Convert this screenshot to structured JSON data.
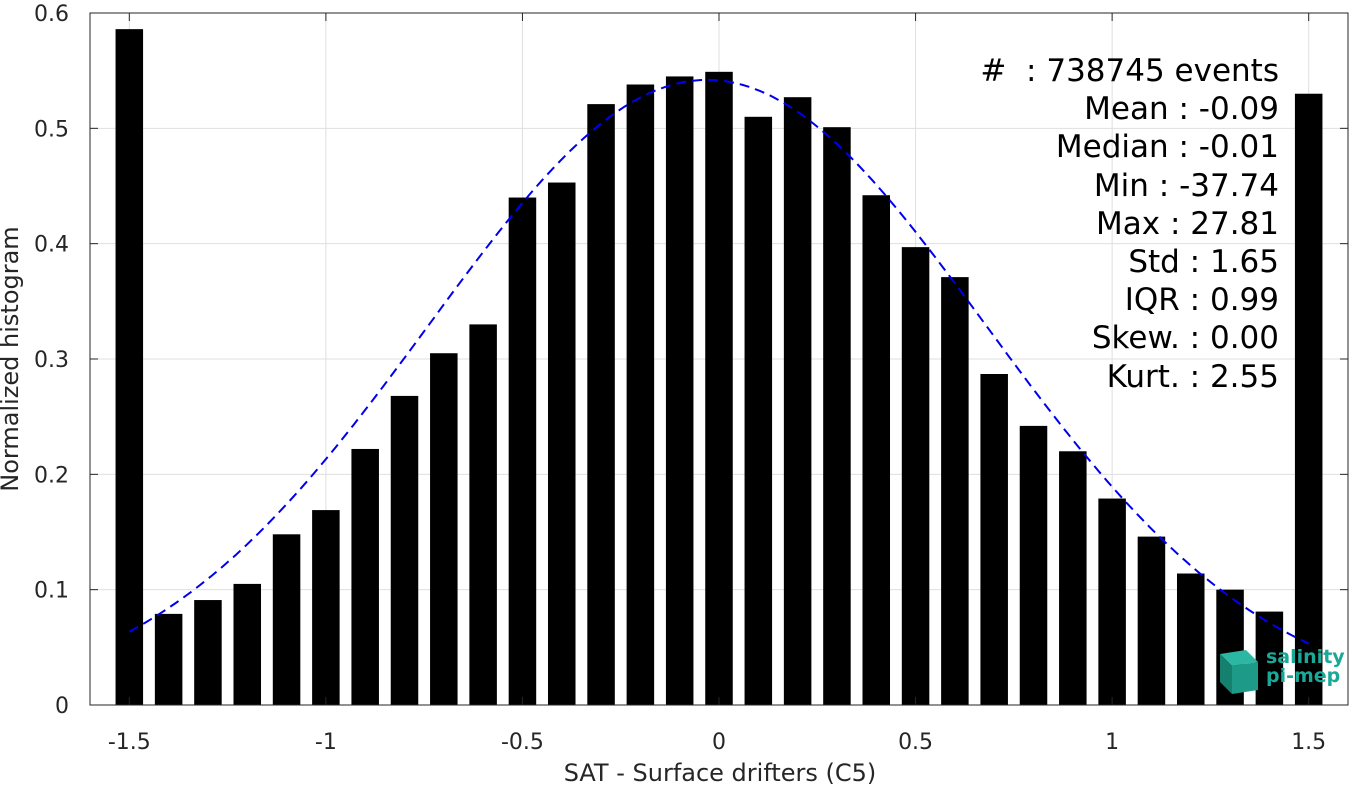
{
  "chart_data": {
    "type": "bar",
    "xlabel": "SAT - Surface drifters (C5)",
    "ylabel": "Normalized histogram",
    "xlim": [
      -1.6,
      1.6
    ],
    "ylim": [
      0,
      0.6
    ],
    "grid": true,
    "xticks": [
      -1.5,
      -1,
      -0.5,
      0,
      0.5,
      1,
      1.5
    ],
    "xtick_labels": [
      "-1.5",
      "-1",
      "-0.5",
      "0",
      "0.5",
      "1",
      "1.5"
    ],
    "yticks": [
      0,
      0.1,
      0.2,
      0.3,
      0.4,
      0.5,
      0.6
    ],
    "ytick_labels": [
      "0",
      "0.1",
      "0.2",
      "0.3",
      "0.4",
      "0.5",
      "0.6"
    ],
    "bar_color": "#000000",
    "bar_width": 0.07,
    "x": [
      -1.5,
      -1.4,
      -1.3,
      -1.2,
      -1.1,
      -1.0,
      -0.9,
      -0.8,
      -0.7,
      -0.6,
      -0.5,
      -0.4,
      -0.3,
      -0.2,
      -0.1,
      0.0,
      0.1,
      0.2,
      0.3,
      0.4,
      0.5,
      0.6,
      0.7,
      0.8,
      0.9,
      1.0,
      1.1,
      1.2,
      1.3,
      1.4,
      1.5
    ],
    "values": [
      0.586,
      0.079,
      0.091,
      0.105,
      0.148,
      0.169,
      0.222,
      0.268,
      0.305,
      0.33,
      0.44,
      0.453,
      0.521,
      0.538,
      0.545,
      0.549,
      0.51,
      0.527,
      0.501,
      0.442,
      0.397,
      0.371,
      0.287,
      0.242,
      0.22,
      0.179,
      0.146,
      0.114,
      0.1,
      0.081,
      0.53
    ],
    "fit_curve": {
      "style": "dashed",
      "color": "#0000ee",
      "x_range": [
        -1.5,
        1.5
      ],
      "mean": -0.03,
      "std": 0.71,
      "peak": 0.542
    },
    "stats": [
      "#  : 738745 events",
      "Mean : -0.09",
      "Median : -0.01",
      "Min : -37.74",
      "Max : 27.81",
      "Std : 1.65",
      "IQR : 0.99",
      "Skew. : 0.00",
      "Kurt. : 2.55"
    ]
  },
  "logo": {
    "line1": "salinity",
    "line2": "pi-mep",
    "color": "#1aa898"
  }
}
